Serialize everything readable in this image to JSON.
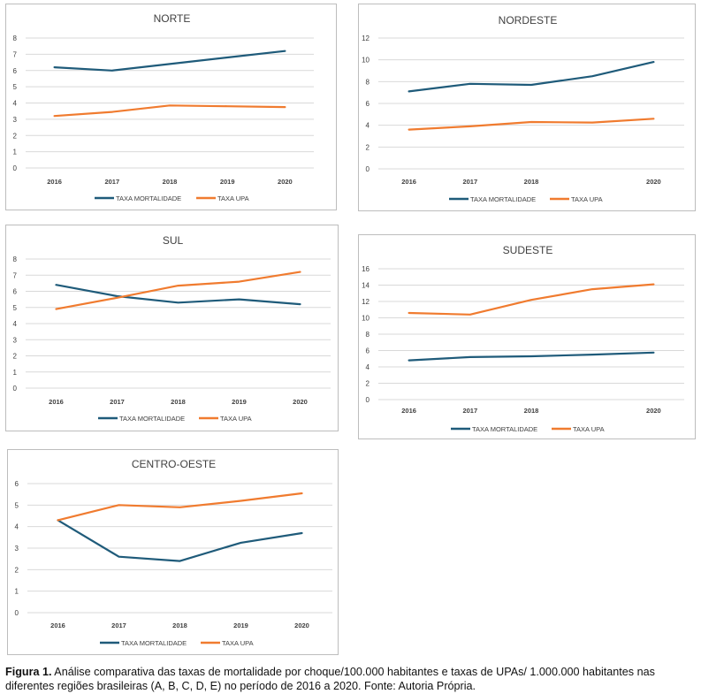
{
  "chart_data": [
    {
      "type": "line",
      "title": "NORTE",
      "categories": [
        "2016",
        "2017",
        "2018",
        "2019",
        "2020"
      ],
      "ylim": [
        0,
        8
      ],
      "yticks": [
        "0",
        "1",
        "2",
        "3",
        "4",
        "5",
        "6",
        "7",
        "8"
      ],
      "grid": true,
      "legend": "bottom",
      "series": [
        {
          "name": "TAXA MORTALIDADE",
          "color": "#1f5b7a",
          "values": [
            6.2,
            6.0,
            6.4,
            6.8,
            7.2
          ]
        },
        {
          "name": "TAXA UPA",
          "color": "#f07b2f",
          "values": [
            3.2,
            3.45,
            3.85,
            3.8,
            3.75
          ]
        }
      ]
    },
    {
      "type": "line",
      "title": "NORDESTE",
      "categories": [
        "2016",
        "2017",
        "2018",
        "",
        "2020"
      ],
      "ylim": [
        0,
        12
      ],
      "yticks": [
        "0",
        "2",
        "4",
        "6",
        "8",
        "10",
        "12"
      ],
      "grid": true,
      "legend": "bottom",
      "series": [
        {
          "name": "TAXA MORTALIDADE",
          "color": "#1f5b7a",
          "values": [
            7.1,
            7.8,
            7.7,
            8.5,
            9.8
          ]
        },
        {
          "name": "TAXA UPA",
          "color": "#f07b2f",
          "values": [
            3.6,
            3.9,
            4.3,
            4.25,
            4.6
          ]
        }
      ]
    },
    {
      "type": "line",
      "title": "SUL",
      "categories": [
        "2016",
        "2017",
        "2018",
        "2019",
        "2020"
      ],
      "ylim": [
        0,
        8
      ],
      "yticks": [
        "0",
        "1",
        "2",
        "3",
        "4",
        "5",
        "6",
        "7",
        "8"
      ],
      "grid": true,
      "legend": "bottom",
      "series": [
        {
          "name": "TAXA MORTALIDADE",
          "color": "#1f5b7a",
          "values": [
            6.4,
            5.7,
            5.3,
            5.5,
            5.2
          ]
        },
        {
          "name": "TAXA UPA",
          "color": "#f07b2f",
          "values": [
            4.9,
            5.6,
            6.35,
            6.6,
            7.2
          ]
        }
      ]
    },
    {
      "type": "line",
      "title": "SUDESTE",
      "categories": [
        "2016",
        "2017",
        "2018",
        "",
        "2020"
      ],
      "ylim": [
        0,
        16
      ],
      "yticks": [
        "0",
        "2",
        "4",
        "6",
        "8",
        "10",
        "12",
        "14",
        "16"
      ],
      "grid": true,
      "legend": "bottom",
      "series": [
        {
          "name": "TAXA MORTALIDADE",
          "color": "#1f5b7a",
          "values": [
            4.8,
            5.2,
            5.3,
            5.5,
            5.75
          ]
        },
        {
          "name": "TAXA UPA",
          "color": "#f07b2f",
          "values": [
            10.6,
            10.4,
            12.2,
            13.5,
            14.1
          ]
        }
      ]
    },
    {
      "type": "line",
      "title": "CENTRO-OESTE",
      "categories": [
        "2016",
        "2017",
        "2018",
        "2019",
        "2020"
      ],
      "ylim": [
        0,
        6
      ],
      "yticks": [
        "0",
        "1",
        "2",
        "3",
        "4",
        "5",
        "6"
      ],
      "grid": true,
      "legend": "bottom",
      "series": [
        {
          "name": "TAXA MORTALIDADE",
          "color": "#1f5b7a",
          "values": [
            4.3,
            2.6,
            2.4,
            3.25,
            3.7
          ]
        },
        {
          "name": "TAXA UPA",
          "color": "#f07b2f",
          "values": [
            4.3,
            5.0,
            4.9,
            5.2,
            5.55
          ]
        }
      ]
    }
  ],
  "caption": {
    "label": "Figura 1.",
    "text": "Análise comparativa das taxas de mortalidade por choque/100.000 habitantes e taxas de UPAs/ 1.000.000 habitantes nas diferentes regiões brasileiras (A, B, C, D, E) no período de 2016 a 2020. Fonte: Autoria Própria."
  }
}
